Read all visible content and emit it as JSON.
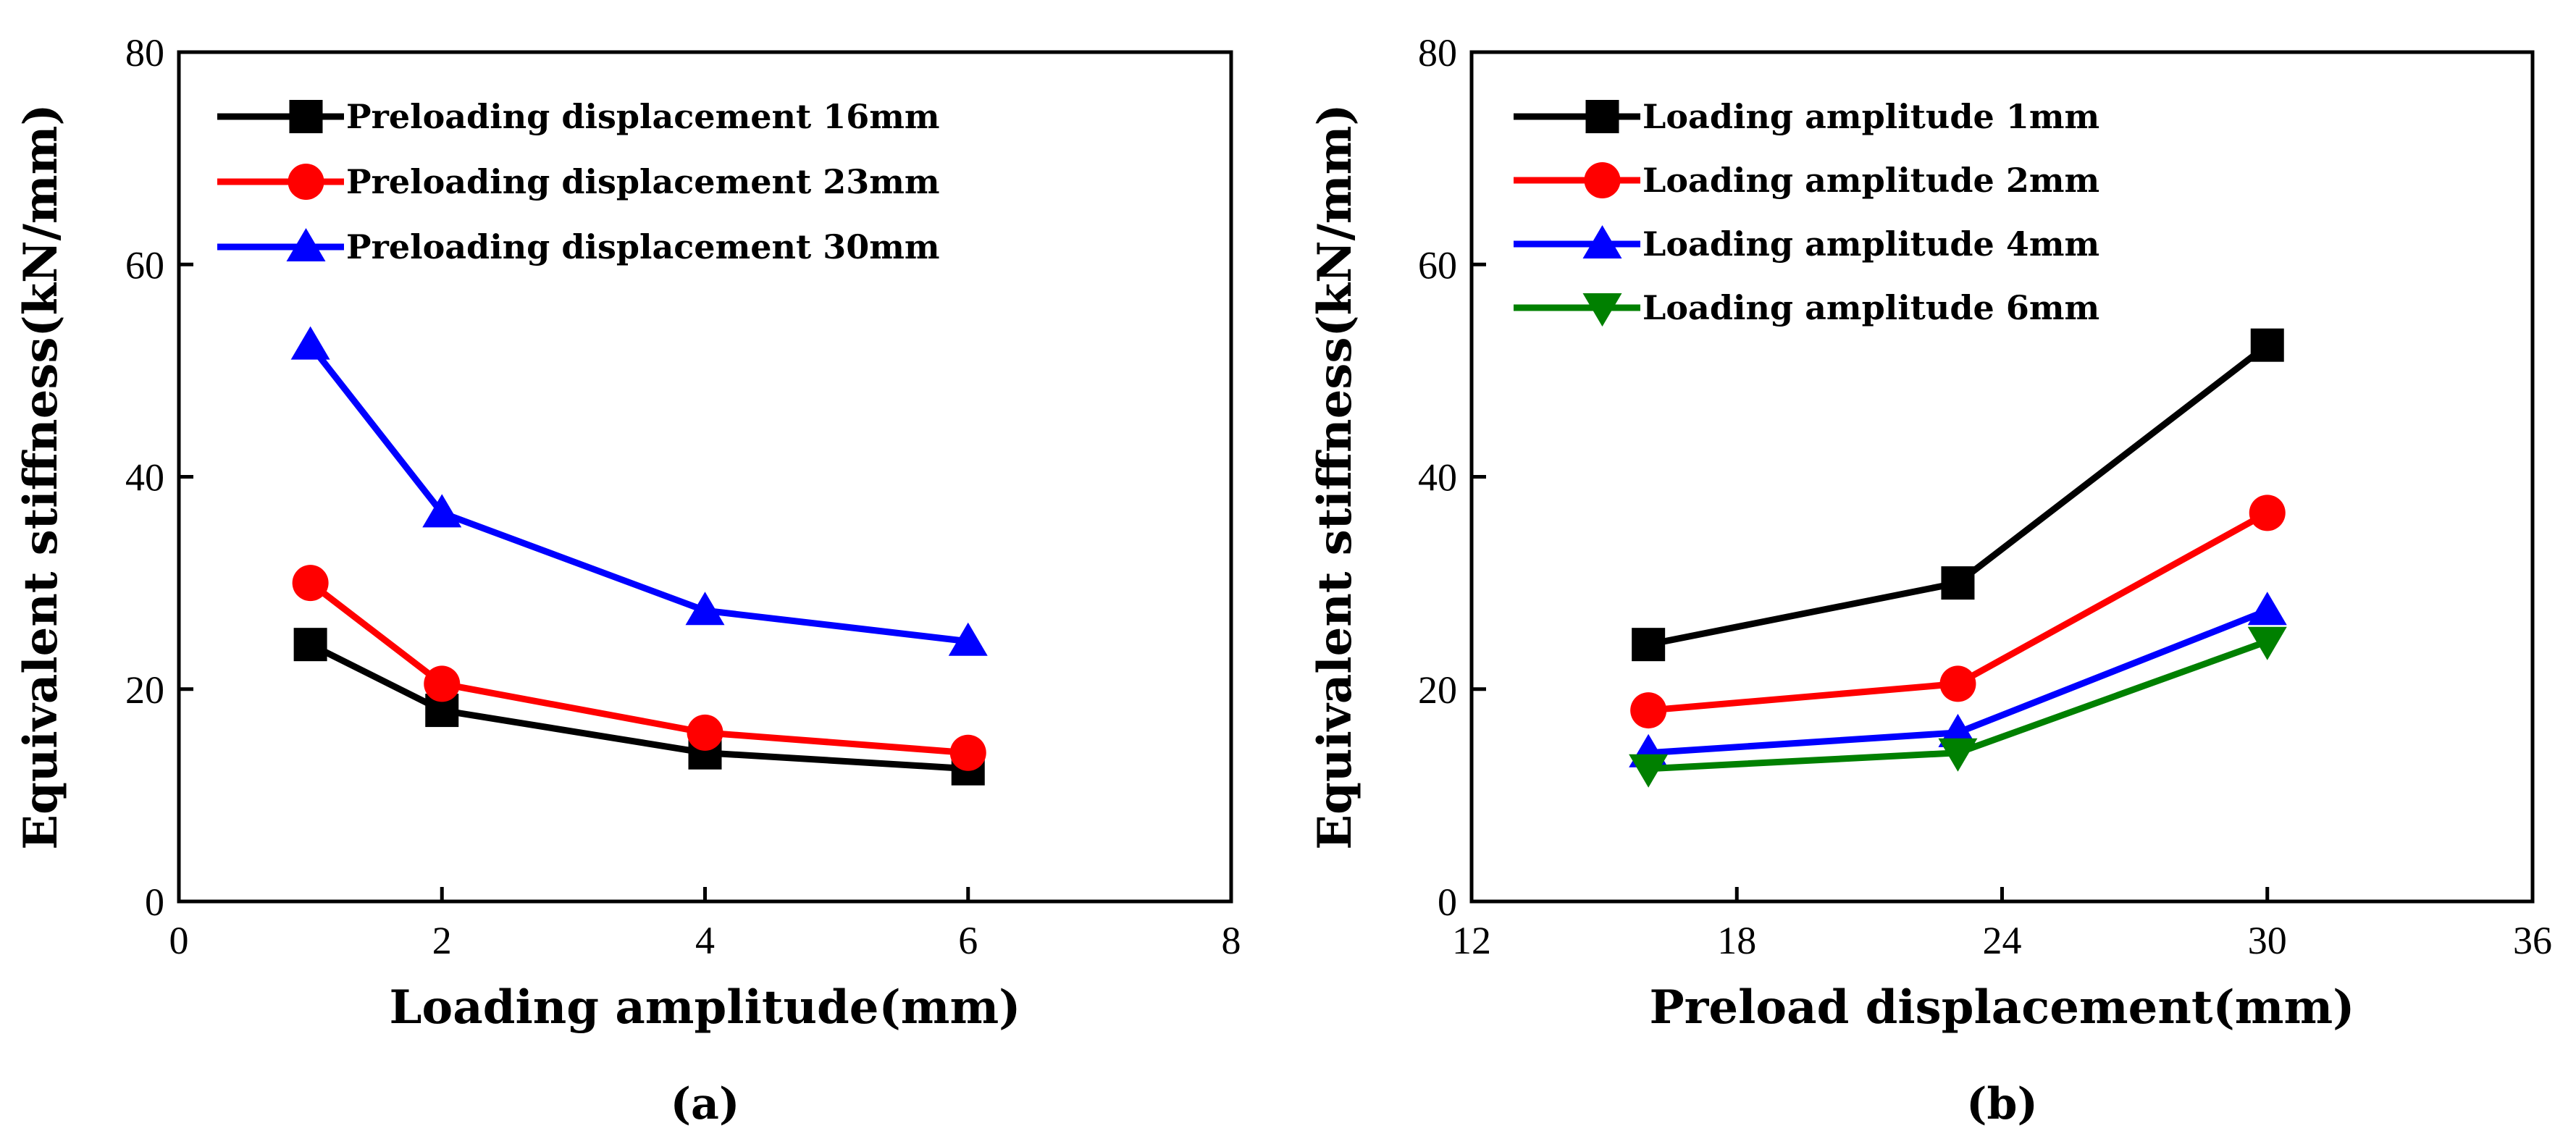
{
  "chart_data": [
    {
      "type": "line",
      "panel_label": "(a)",
      "xlabel": "Loading amplitude(mm)",
      "ylabel": "Equivalent stiffness(kN/mm)",
      "xlim": [
        0,
        8
      ],
      "ylim": [
        0,
        80
      ],
      "xticks": [
        0,
        2,
        4,
        6,
        8
      ],
      "yticks": [
        0,
        20,
        40,
        60,
        80
      ],
      "x": [
        1,
        2,
        4,
        6
      ],
      "legend_position": "top-left",
      "series": [
        {
          "name": "Preloading displacement 16mm",
          "color": "#000000",
          "marker": "square",
          "values": [
            24.2,
            18.0,
            14.0,
            12.5
          ]
        },
        {
          "name": "Preloading displacement 23mm",
          "color": "#ff0000",
          "marker": "circle",
          "values": [
            30.0,
            20.5,
            15.9,
            14.0
          ]
        },
        {
          "name": "Preloading displacement 30mm",
          "color": "#0000ff",
          "marker": "triangle",
          "values": [
            52.4,
            36.6,
            27.4,
            24.5
          ]
        }
      ]
    },
    {
      "type": "line",
      "panel_label": "(b)",
      "xlabel": "Preload displacement(mm)",
      "ylabel": "Equivalent stiffness(kN/mm)",
      "xlim": [
        12,
        36
      ],
      "ylim": [
        0,
        80
      ],
      "xticks": [
        12,
        18,
        24,
        30,
        36
      ],
      "yticks": [
        0,
        20,
        40,
        60,
        80
      ],
      "x": [
        16,
        23,
        30
      ],
      "legend_position": "top-left",
      "series": [
        {
          "name": "Loading amplitude 1mm",
          "color": "#000000",
          "marker": "square",
          "values": [
            24.2,
            30.0,
            52.4
          ]
        },
        {
          "name": "Loading amplitude 2mm",
          "color": "#ff0000",
          "marker": "circle",
          "values": [
            18.0,
            20.5,
            36.6
          ]
        },
        {
          "name": "Loading amplitude 4mm",
          "color": "#0000ff",
          "marker": "triangle",
          "values": [
            14.0,
            15.9,
            27.4
          ]
        },
        {
          "name": "Loading amplitude 6mm",
          "color": "#008000",
          "marker": "triangle-down",
          "values": [
            12.5,
            14.0,
            24.5
          ]
        }
      ]
    }
  ]
}
